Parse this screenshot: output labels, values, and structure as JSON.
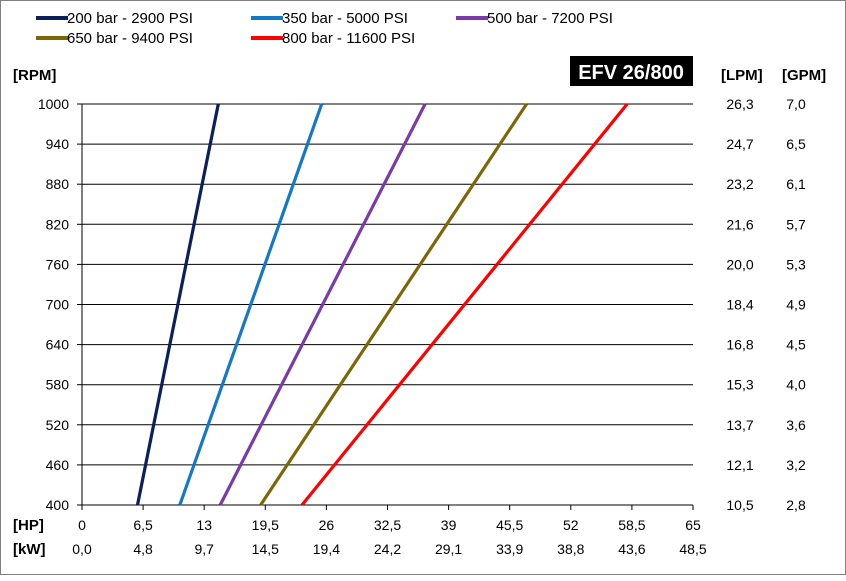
{
  "chart_data": {
    "type": "line",
    "badge": "EFV 26/800",
    "legend": [
      {
        "label": "200 bar - 2900 PSI",
        "color": "#0a1f5c"
      },
      {
        "label": "350 bar - 5000 PSI",
        "color": "#1479c4"
      },
      {
        "label": "500 bar - 7200 PSI",
        "color": "#7a3aa8"
      },
      {
        "label": "650 bar - 9400 PSI",
        "color": "#7d6608"
      },
      {
        "label": "800 bar - 11600 PSI",
        "color": "#ff0000"
      }
    ],
    "y_axis": {
      "label": "[RPM]",
      "range": [
        400,
        1000
      ],
      "ticks": [
        "400",
        "460",
        "520",
        "580",
        "640",
        "700",
        "760",
        "820",
        "880",
        "940",
        "1000"
      ]
    },
    "x_axis_hp": {
      "label": "[HP]",
      "range": [
        0,
        65
      ],
      "ticks": [
        "0",
        "6,5",
        "13",
        "19,5",
        "26",
        "32,5",
        "39",
        "45,5",
        "52",
        "58,5",
        "65"
      ]
    },
    "x_axis_kw": {
      "label": "[kW]",
      "ticks": [
        "0,0",
        "4,8",
        "9,7",
        "14,5",
        "19,4",
        "24,2",
        "29,1",
        "33,9",
        "38,8",
        "43,6",
        "48,5"
      ]
    },
    "right_axis_lpm": {
      "label": "[LPM]",
      "ticks": [
        "10,5",
        "12,1",
        "13,7",
        "15,3",
        "16,8",
        "18,4",
        "20,0",
        "21,6",
        "23,2",
        "24,7",
        "26,3"
      ]
    },
    "right_axis_gpm": {
      "label": "[GPM]",
      "ticks": [
        "2,8",
        "3,2",
        "3,6",
        "4,0",
        "4,5",
        "4,9",
        "5,3",
        "5,7",
        "6,1",
        "6,5",
        "7,0"
      ]
    },
    "series": [
      {
        "name": "200 bar - 2900 PSI",
        "color": "#0a1f5c",
        "points": [
          [
            5.9,
            400
          ],
          [
            14.5,
            1000
          ]
        ]
      },
      {
        "name": "350 bar - 5000 PSI",
        "color": "#1479c4",
        "points": [
          [
            10.4,
            400
          ],
          [
            25.5,
            1000
          ]
        ]
      },
      {
        "name": "500 bar - 7200 PSI",
        "color": "#7a3aa8",
        "points": [
          [
            14.7,
            400
          ],
          [
            36.5,
            1000
          ]
        ]
      },
      {
        "name": "650 bar - 9400 PSI",
        "color": "#7d6608",
        "points": [
          [
            19.0,
            400
          ],
          [
            47.3,
            1000
          ]
        ]
      },
      {
        "name": "800 bar - 11600 PSI",
        "color": "#ff0000",
        "points": [
          [
            23.4,
            400
          ],
          [
            58.0,
            1000
          ]
        ]
      }
    ]
  }
}
